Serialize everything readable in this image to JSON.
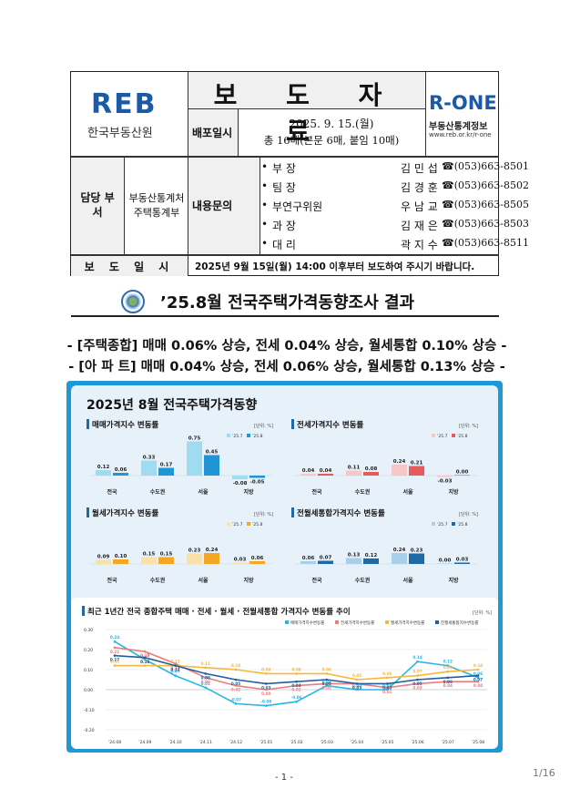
{
  "header": {
    "logo_text": "REB",
    "org_name": "한국부동산원",
    "doc_type": "보 도 자 료",
    "brand_logo": "R-ONE",
    "brand_sub": "부동산통계정보",
    "brand_url": "www.reb.or.kr/r-one",
    "dist_label": "배포일시",
    "dist_date": "2025. 9. 15.(월)",
    "dist_pages": "총 16매(본문 6매, 붙임 10매)",
    "dept_label": "담당 부서",
    "dept_line1": "부동산통계처",
    "dept_line2": "주택통계부",
    "inquiry_label": "내용문의",
    "contacts": [
      {
        "role": "부 장",
        "name": "김 민 섭",
        "phone": "☎(053)663-8501"
      },
      {
        "role": "팀 장",
        "name": "김 경 훈",
        "phone": "☎(053)663-8502"
      },
      {
        "role": "부연구위원",
        "name": "우 남 교",
        "phone": "☎(053)663-8505"
      },
      {
        "role": "과 장",
        "name": "김 재 은",
        "phone": "☎(053)663-8503"
      },
      {
        "role": "대 리",
        "name": "곽 지 수",
        "phone": "☎(053)663-8511"
      }
    ],
    "release_label": "보 도 일 시",
    "release_text": "2025년 9월 15일(월) 14:00 이후부터 보도하여 주시기 바랍니다."
  },
  "doc_title": "’25.8월 전국주택가격동향조사 결과",
  "summary": [
    "- [주택종합] 매매 0.06% 상승, 전세 0.04% 상승, 월세통합 0.10% 상승 -",
    "- [아 파 트] 매매 0.04% 상승, 전세 0.06% 상승, 월세통합 0.13% 상승 -"
  ],
  "infographic_title": "2025년 8월 전국주택가격동향",
  "charts": [
    {
      "title": "매매가격지수 변동률",
      "unit": "[단위: %]",
      "legend": [
        "’25.7",
        "’25.8"
      ],
      "colors": [
        "#9fdcf2",
        "#1f95d6"
      ],
      "categories": [
        "전국",
        "수도권",
        "서울",
        "지방"
      ],
      "prev": [
        0.12,
        0.33,
        0.75,
        -0.08
      ],
      "curr": [
        0.06,
        0.17,
        0.45,
        -0.05
      ],
      "max": 0.8
    },
    {
      "title": "전세가격지수 변동률",
      "unit": "[단위: %]",
      "legend": [
        "’25.7",
        "’25.8"
      ],
      "colors": [
        "#f7c6c6",
        "#e65a5a"
      ],
      "categories": [
        "전국",
        "수도권",
        "서울",
        "지방"
      ],
      "prev": [
        0.04,
        0.11,
        0.24,
        -0.03
      ],
      "curr": [
        0.04,
        0.08,
        0.21,
        0.0
      ],
      "max": 0.8
    },
    {
      "title": "월세가격지수 변동률",
      "unit": "[단위: %]",
      "legend": [
        "’25.7",
        "’25.8"
      ],
      "colors": [
        "#fbe0a8",
        "#f5a623"
      ],
      "categories": [
        "전국",
        "수도권",
        "서울",
        "지방"
      ],
      "prev": [
        0.09,
        0.15,
        0.23,
        0.03
      ],
      "curr": [
        0.1,
        0.15,
        0.24,
        0.06
      ],
      "max": 0.8
    },
    {
      "title": "전월세통합가격지수 변동률",
      "unit": "[단위: %]",
      "legend": [
        "’25.7",
        "’25.8"
      ],
      "colors": [
        "#a9cfea",
        "#1f6aa5"
      ],
      "categories": [
        "전국",
        "수도권",
        "서울",
        "지방"
      ],
      "prev": [
        0.06,
        0.13,
        0.24,
        0.0
      ],
      "curr": [
        0.07,
        0.12,
        0.23,
        0.03
      ],
      "max": 0.8
    }
  ],
  "chart_data": {
    "type": "line",
    "title": "최근 1년간 전국 종합주택 매매 · 전세 · 월세 · 전월세통합 가격지수 변동률 추이",
    "unit": "[단위: %]",
    "x": [
      "’24.08",
      "’24.09",
      "’24.10",
      "’24.11",
      "’24.12",
      "’25.01",
      "’25.02",
      "’25.03",
      "’25.04",
      "’25.05",
      "’25.06",
      "’25.07",
      "’25.08"
    ],
    "ylim": [
      -0.2,
      0.3
    ],
    "yticks": [
      "0.30",
      "0.20",
      "0.10",
      "0.00",
      "-0.10",
      "-0.20"
    ],
    "legend_position": "top-right",
    "series": [
      {
        "name": "매매가격지수변동률",
        "color": "#29b6e8",
        "values": [
          0.24,
          0.15,
          0.07,
          0.01,
          -0.07,
          -0.08,
          -0.06,
          0.02,
          0.0,
          0.0,
          0.14,
          0.12,
          0.06
        ]
      },
      {
        "name": "전세가격지수변동률",
        "color": "#ef7b7b",
        "values": [
          0.21,
          0.19,
          0.13,
          0.06,
          0.02,
          0.0,
          0.02,
          0.03,
          0.03,
          0.01,
          0.03,
          0.04,
          0.04
        ]
      },
      {
        "name": "월세가격지수변동률",
        "color": "#f6b83a",
        "values": [
          0.12,
          0.12,
          0.12,
          0.11,
          0.1,
          0.08,
          0.08,
          0.08,
          0.05,
          0.06,
          0.07,
          0.09,
          0.1
        ]
      },
      {
        "name": "전월세통합지수변동률",
        "color": "#1f5fa0",
        "values": [
          0.17,
          0.16,
          0.12,
          0.08,
          0.05,
          0.03,
          0.04,
          0.05,
          0.03,
          0.03,
          0.05,
          0.06,
          0.07
        ]
      }
    ]
  },
  "footer": {
    "page": "- 1 -",
    "page_count": "1/16"
  }
}
